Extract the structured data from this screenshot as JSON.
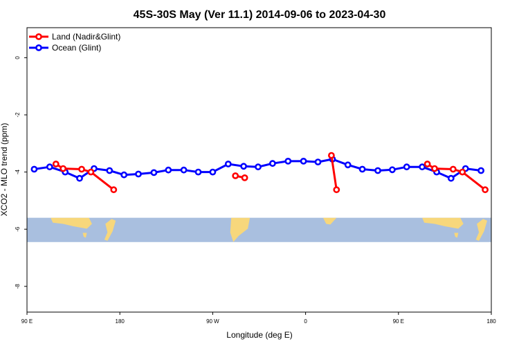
{
  "chart_data": {
    "type": "line",
    "title": "45S-30S May (Ver 11.1)   2014-09-06 to 2023-04-30",
    "xlabel": "Longitude (deg E)",
    "ylabel": "XCO2 - MLO trend (ppm)",
    "xlim": [
      90,
      540
    ],
    "ylim": [
      -8.9,
      1.05
    ],
    "x_ticks": [
      {
        "value": 90,
        "label": "90 E"
      },
      {
        "value": 180,
        "label": "180"
      },
      {
        "value": 270,
        "label": "90 W"
      },
      {
        "value": 360,
        "label": "0"
      },
      {
        "value": 450,
        "label": "90 E"
      },
      {
        "value": 540,
        "label": "180"
      }
    ],
    "y_ticks": [
      {
        "value": 0,
        "label": "0"
      },
      {
        "value": -2,
        "label": "-2"
      },
      {
        "value": -4,
        "label": "-4"
      },
      {
        "value": -6,
        "label": "-6"
      },
      {
        "value": -8,
        "label": "-8"
      }
    ],
    "legend_position": "top-left",
    "map_band": {
      "ymin": -6.45,
      "ymax": -5.6,
      "ocean_color": "#a9bfdf",
      "land_color": "#f7d77c"
    },
    "series": [
      {
        "name": "Land (Nadir&Glint)",
        "color": "#ff0000",
        "segments": [
          [
            [
              118,
              -3.72
            ],
            [
              125,
              -3.88
            ],
            [
              143,
              -3.9
            ],
            [
              152,
              -4.0
            ],
            [
              174,
              -4.62
            ]
          ],
          [
            [
              292,
              -4.13
            ],
            [
              301,
              -4.2
            ]
          ],
          [
            [
              385,
              -3.42
            ],
            [
              390,
              -4.62
            ]
          ],
          [
            [
              478,
              -3.72
            ],
            [
              485,
              -3.88
            ],
            [
              503,
              -3.9
            ],
            [
              512,
              -4.0
            ],
            [
              534,
              -4.62
            ]
          ]
        ]
      },
      {
        "name": "Ocean (Glint)",
        "color": "#0000ff",
        "segments": [
          [
            [
              97,
              -3.9
            ],
            [
              112,
              -3.82
            ],
            [
              127,
              -4.0
            ],
            [
              141,
              -4.22
            ],
            [
              155,
              -3.88
            ],
            [
              170,
              -3.95
            ],
            [
              184,
              -4.1
            ],
            [
              198,
              -4.07
            ],
            [
              213,
              -4.02
            ],
            [
              227,
              -3.93
            ],
            [
              242,
              -3.93
            ],
            [
              256,
              -4.0
            ],
            [
              270,
              -4.0
            ],
            [
              285,
              -3.72
            ],
            [
              300,
              -3.8
            ],
            [
              314,
              -3.82
            ],
            [
              328,
              -3.7
            ],
            [
              343,
              -3.62
            ],
            [
              358,
              -3.62
            ],
            [
              372,
              -3.65
            ],
            [
              386,
              -3.55
            ],
            [
              401,
              -3.75
            ],
            [
              415,
              -3.9
            ],
            [
              430,
              -3.95
            ],
            [
              444,
              -3.92
            ],
            [
              458,
              -3.82
            ],
            [
              473,
              -3.82
            ],
            [
              487,
              -4.0
            ],
            [
              501,
              -4.22
            ],
            [
              515,
              -3.88
            ],
            [
              530,
              -3.95
            ]
          ]
        ]
      }
    ]
  }
}
